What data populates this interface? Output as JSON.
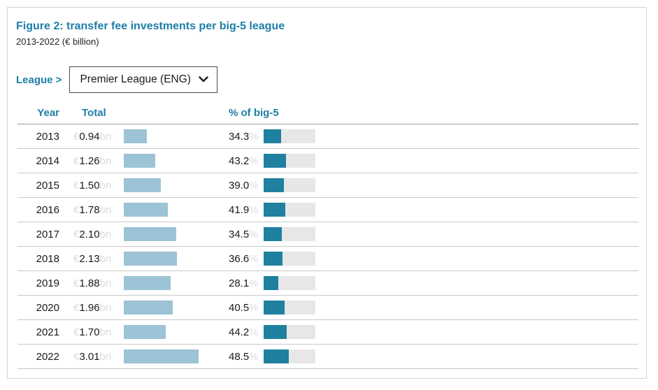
{
  "figure": {
    "title": "Figure 2: transfer fee investments per big-5 league",
    "subtitle": "2013-2022 (€ billion)"
  },
  "league_filter": {
    "label": "League >",
    "selected": "Premier League (ENG)"
  },
  "table": {
    "columns": [
      "Year",
      "Total",
      "% of big-5"
    ],
    "currency_prefix": "€",
    "unit_suffix": "bn",
    "percent_suffix": "%"
  },
  "rows": [
    {
      "year": "2013",
      "total": "0.94",
      "pct": "34.3"
    },
    {
      "year": "2014",
      "total": "1.26",
      "pct": "43.2"
    },
    {
      "year": "2015",
      "total": "1.50",
      "pct": "39.0"
    },
    {
      "year": "2016",
      "total": "1.78",
      "pct": "41.9"
    },
    {
      "year": "2017",
      "total": "2.10",
      "pct": "34.5"
    },
    {
      "year": "2018",
      "total": "2.13",
      "pct": "36.6"
    },
    {
      "year": "2019",
      "total": "1.88",
      "pct": "28.1"
    },
    {
      "year": "2020",
      "total": "1.96",
      "pct": "40.5"
    },
    {
      "year": "2021",
      "total": "1.70",
      "pct": "44.2"
    },
    {
      "year": "2022",
      "total": "3.01",
      "pct": "48.5"
    }
  ],
  "chart_data": {
    "type": "bar",
    "title": "Figure 2: transfer fee investments per big-5 league",
    "subtitle": "2013-2022 (€ billion)",
    "league": "Premier League (ENG)",
    "categories": [
      2013,
      2014,
      2015,
      2016,
      2017,
      2018,
      2019,
      2020,
      2021,
      2022
    ],
    "series": [
      {
        "name": "Total (€ billion)",
        "values": [
          0.94,
          1.26,
          1.5,
          1.78,
          2.1,
          2.13,
          1.88,
          1.96,
          1.7,
          3.01
        ]
      },
      {
        "name": "% of big-5",
        "values": [
          34.3,
          43.2,
          39.0,
          41.9,
          34.5,
          36.6,
          28.1,
          40.5,
          44.2,
          48.5
        ]
      }
    ],
    "layout": {
      "orientation": "horizontal",
      "grid": false,
      "legend": "none",
      "pct_axis_range": [
        0,
        100
      ]
    }
  },
  "colors": {
    "accent": "#1e7ea6",
    "bar_total": "#9cc3d6",
    "bar_pct": "#2080a0",
    "bar_track": "#e7e7e7",
    "faint_unit_text": "#dcdcdc"
  }
}
